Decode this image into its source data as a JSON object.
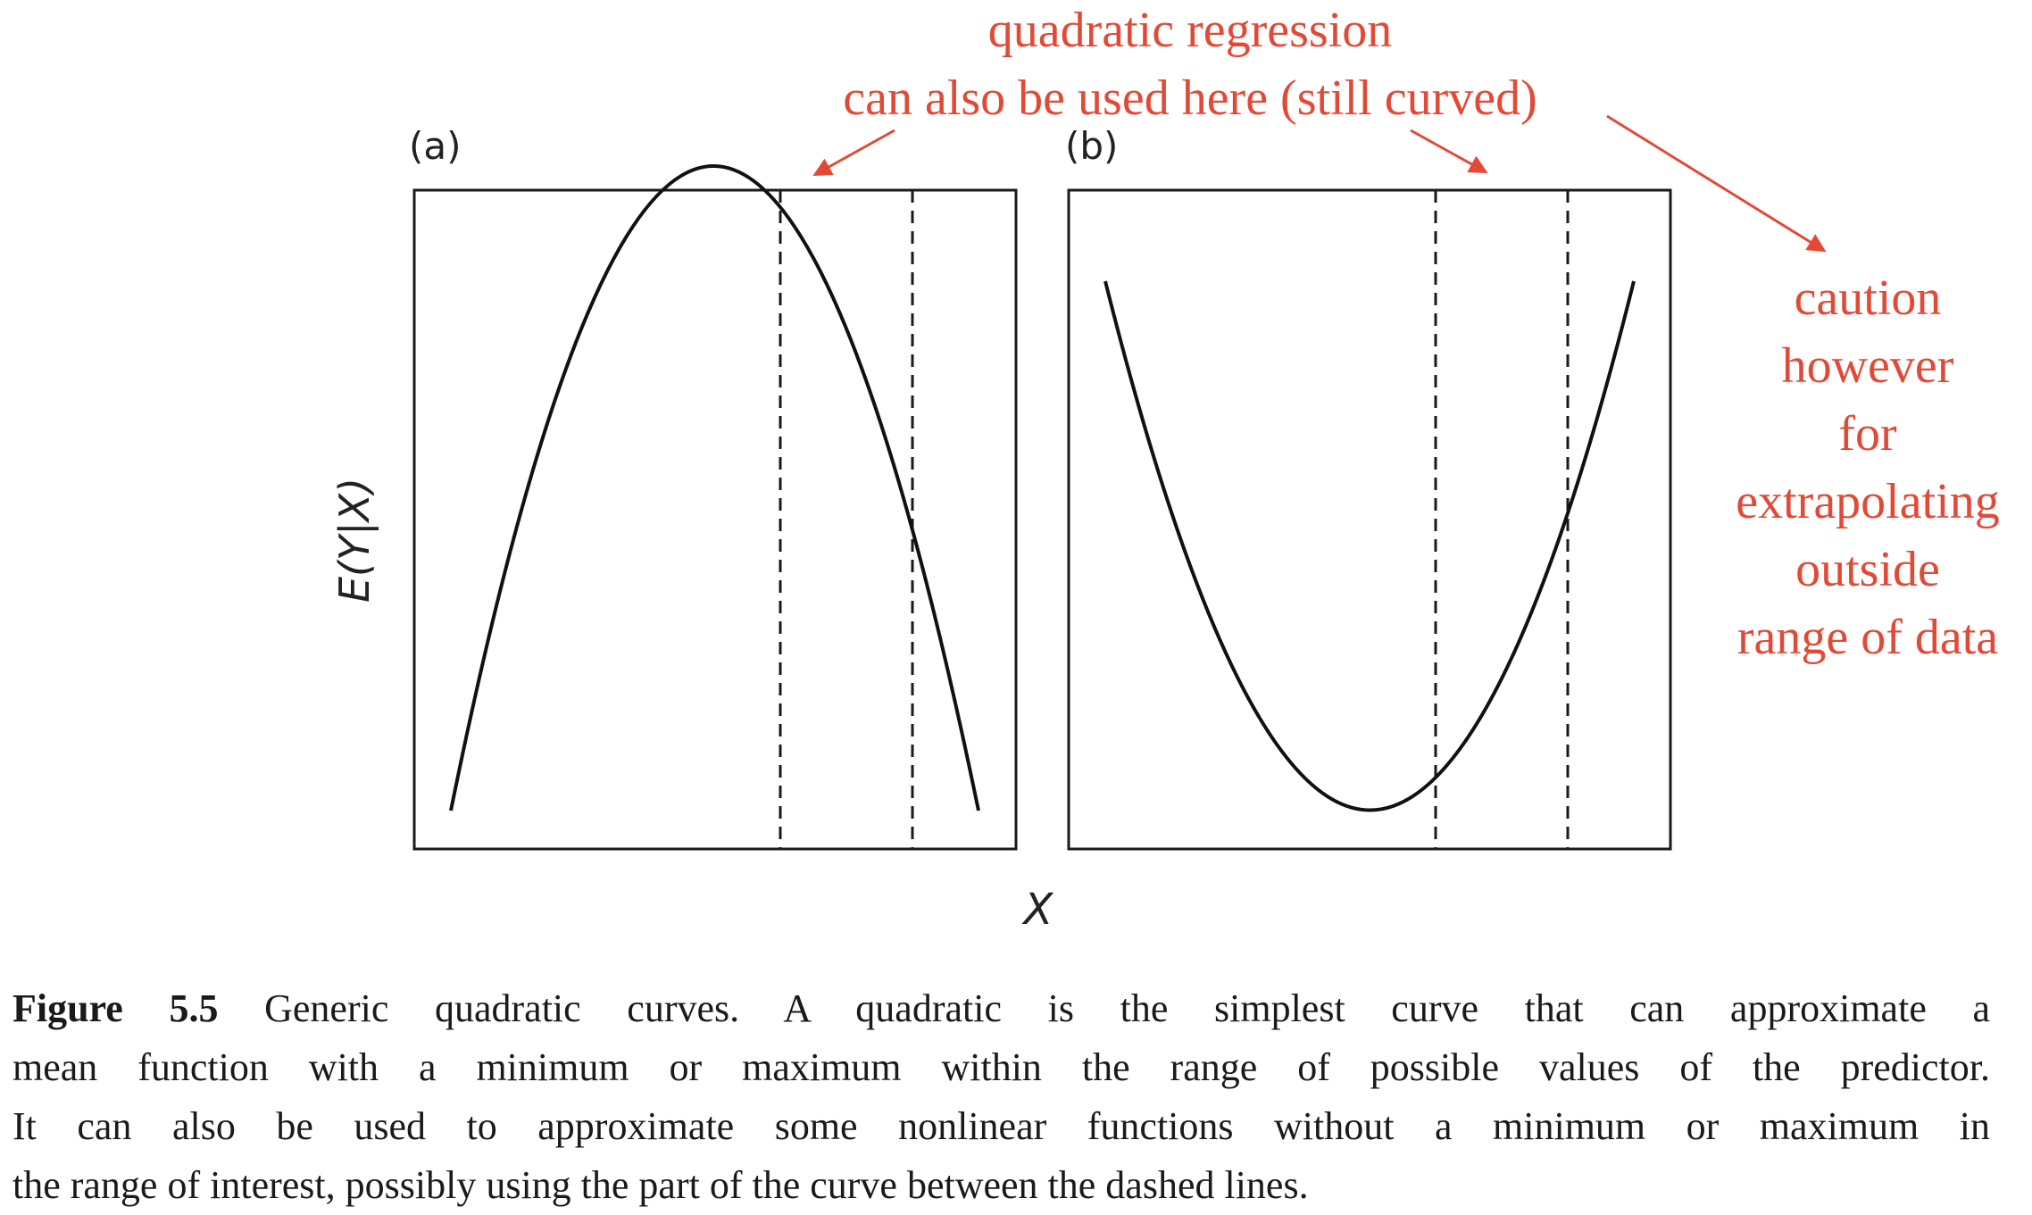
{
  "figure": {
    "panel_a_label": "(a)",
    "panel_b_label": "(b)",
    "y_axis_label": "E(Y|X)",
    "x_axis_label": "X"
  },
  "annotations": {
    "top_line1": "quadratic regression",
    "top_line2": "can also be used here (still curved)",
    "side_lines": [
      "caution",
      "however",
      "for",
      "extrapolating",
      "outside",
      "range of data"
    ],
    "color": "#e14a37"
  },
  "caption": {
    "label": "Figure 5.5",
    "lines": [
      "Generic quadratic curves. A quadratic is the simplest curve that can approximate a",
      "mean function with a minimum or maximum within the range of possible values of the predictor.",
      "It can also be used to approximate some nonlinear functions without a minimum or maximum in",
      "the range of interest, possibly using the part of the curve between the dashed lines."
    ]
  },
  "chart_data": [
    {
      "type": "line",
      "panel": "(a)",
      "shape": "concave quadratic with maximum inside the range",
      "series": [
        {
          "x": [
            0,
            1
          ],
          "y": [
            0,
            0
          ]
        }
      ]
    },
    {
      "type": "line",
      "panel": "(b)",
      "shape": "convex quadratic with minimum inside the range",
      "series": [
        {
          "x": [
            0,
            1
          ],
          "y": [
            0,
            0
          ]
        }
      ]
    }
  ]
}
